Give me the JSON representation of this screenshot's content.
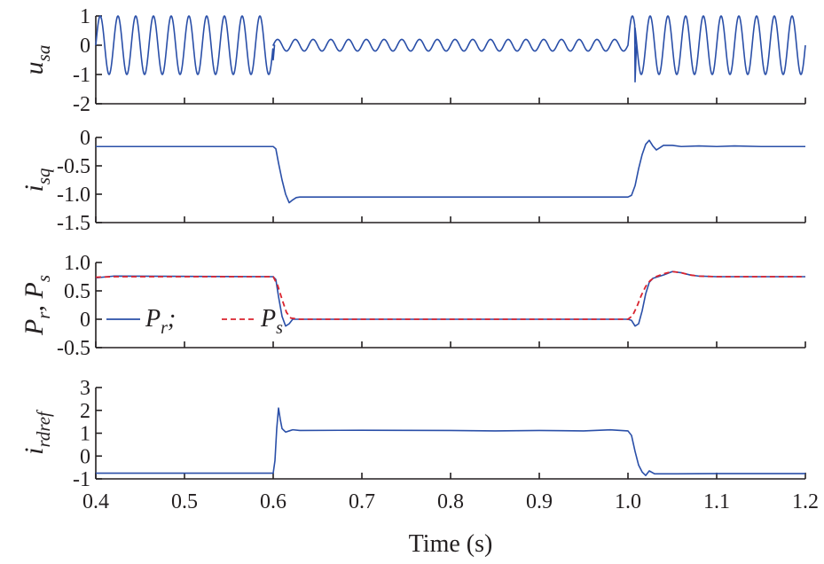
{
  "colors": {
    "series_solid": "#2a4fa8",
    "series_dashed": "#d9232e",
    "axis": "#231f20"
  },
  "chart_data": [
    {
      "type": "line",
      "ylabel": {
        "main": "u",
        "sub": "sa"
      },
      "xlim": [
        0.4,
        1.2
      ],
      "ylim": [
        -2,
        1
      ],
      "yticks": [
        "1",
        "0",
        "-1",
        "-2"
      ],
      "yticks_values": [
        1,
        0,
        -1,
        -2
      ],
      "grid": false,
      "series": [
        {
          "style": "solid",
          "segments": [
            {
              "x": [
                0.4,
                0.6
              ],
              "waveform": "sine",
              "amplitude": 1.0,
              "frequency_hz": 50,
              "offset": 0.0
            },
            {
              "x": [
                0.6,
                1.0
              ],
              "waveform": "sine",
              "amplitude": 0.2,
              "frequency_hz": 50,
              "offset": 0.0
            },
            {
              "x": [
                1.0,
                1.2
              ],
              "waveform": "sine",
              "amplitude": 1.0,
              "frequency_hz": 50,
              "offset": 0.0
            }
          ],
          "transients": [
            {
              "x": 0.6,
              "y": -0.5
            },
            {
              "x": 1.008,
              "y": -1.25
            }
          ]
        }
      ]
    },
    {
      "type": "line",
      "ylabel": {
        "main": "i",
        "sub": "sq"
      },
      "xlim": [
        0.4,
        1.2
      ],
      "ylim": [
        -1.5,
        0
      ],
      "yticks": [
        "0",
        "-0.5",
        "-1.0",
        "-1.5"
      ],
      "yticks_values": [
        0,
        -0.5,
        -1.0,
        -1.5
      ],
      "grid": false,
      "series": [
        {
          "style": "solid",
          "x": [
            0.4,
            0.6,
            0.603,
            0.606,
            0.61,
            0.614,
            0.618,
            0.622,
            0.626,
            0.63,
            0.7,
            0.8,
            0.9,
            1.0,
            1.004,
            1.008,
            1.012,
            1.016,
            1.02,
            1.024,
            1.028,
            1.032,
            1.036,
            1.04,
            1.05,
            1.06,
            1.08,
            1.1,
            1.12,
            1.15,
            1.2
          ],
          "y": [
            -0.16,
            -0.16,
            -0.2,
            -0.45,
            -0.75,
            -1.0,
            -1.15,
            -1.1,
            -1.06,
            -1.05,
            -1.05,
            -1.05,
            -1.05,
            -1.05,
            -1.02,
            -0.85,
            -0.55,
            -0.3,
            -0.12,
            -0.05,
            -0.15,
            -0.22,
            -0.18,
            -0.14,
            -0.14,
            -0.16,
            -0.15,
            -0.16,
            -0.15,
            -0.16,
            -0.16
          ]
        }
      ]
    },
    {
      "type": "line",
      "ylabel": {
        "main": "P",
        "sub": "r",
        "sep": ", ",
        "main2": "P",
        "sub2": "s"
      },
      "xlim": [
        0.4,
        1.2
      ],
      "ylim": [
        -0.5,
        1.0
      ],
      "yticks": [
        "1.0",
        "0.5",
        "0",
        "-0.5"
      ],
      "yticks_values": [
        1.0,
        0.5,
        0,
        -0.5
      ],
      "grid": false,
      "legend": {
        "placement": "middle-left",
        "entries": [
          {
            "main": "P",
            "sub": "r",
            "suffix": ";",
            "style": "solid"
          },
          {
            "main": "P",
            "sub": "s",
            "suffix": "",
            "style": "dashed"
          }
        ]
      },
      "series": [
        {
          "name": "Pr",
          "style": "solid",
          "x": [
            0.4,
            0.42,
            0.6,
            0.603,
            0.606,
            0.61,
            0.614,
            0.618,
            0.622,
            0.63,
            0.7,
            0.8,
            0.9,
            1.0,
            1.004,
            1.008,
            1.012,
            1.016,
            1.02,
            1.024,
            1.028,
            1.032,
            1.04,
            1.05,
            1.06,
            1.07,
            1.08,
            1.1,
            1.2
          ],
          "y": [
            0.73,
            0.76,
            0.75,
            0.7,
            0.4,
            0.05,
            -0.12,
            -0.08,
            0.0,
            0.0,
            0.0,
            0.0,
            0.0,
            0.0,
            -0.02,
            -0.12,
            -0.08,
            0.15,
            0.45,
            0.65,
            0.72,
            0.74,
            0.78,
            0.84,
            0.82,
            0.78,
            0.76,
            0.75,
            0.75
          ]
        },
        {
          "name": "Ps",
          "style": "dashed",
          "x": [
            0.4,
            0.42,
            0.6,
            0.605,
            0.61,
            0.615,
            0.62,
            0.63,
            0.7,
            0.8,
            0.9,
            1.0,
            1.005,
            1.01,
            1.015,
            1.02,
            1.025,
            1.03,
            1.04,
            1.05,
            1.06,
            1.07,
            1.08,
            1.1,
            1.2
          ],
          "y": [
            0.74,
            0.75,
            0.75,
            0.6,
            0.35,
            0.12,
            0.02,
            0.0,
            0.0,
            0.0,
            0.0,
            0.0,
            0.06,
            0.22,
            0.42,
            0.58,
            0.68,
            0.74,
            0.8,
            0.84,
            0.82,
            0.78,
            0.76,
            0.75,
            0.75
          ]
        }
      ]
    },
    {
      "type": "line",
      "ylabel": {
        "main": "i",
        "sub": "rdref"
      },
      "xlim": [
        0.4,
        1.2
      ],
      "ylim": [
        -1,
        3
      ],
      "yticks": [
        "3",
        "2",
        "1",
        "0",
        "-1"
      ],
      "yticks_values": [
        3,
        2,
        1,
        0,
        -1
      ],
      "xticks": [
        "0.4",
        "0.5",
        "0.6",
        "0.7",
        "0.8",
        "0.9",
        "1.0",
        "1.1",
        "1.2"
      ],
      "xticks_values": [
        0.4,
        0.5,
        0.6,
        0.7,
        0.8,
        0.9,
        1.0,
        1.1,
        1.2
      ],
      "xlabel": "Time (s)",
      "grid": false,
      "series": [
        {
          "style": "solid",
          "x": [
            0.4,
            0.6,
            0.602,
            0.604,
            0.606,
            0.608,
            0.61,
            0.614,
            0.618,
            0.622,
            0.63,
            0.7,
            0.8,
            0.85,
            0.9,
            0.95,
            0.98,
            1.0,
            1.004,
            1.008,
            1.012,
            1.016,
            1.02,
            1.024,
            1.03,
            1.05,
            1.1,
            1.2
          ],
          "y": [
            -0.75,
            -0.75,
            -0.2,
            1.2,
            2.1,
            1.6,
            1.2,
            1.05,
            1.1,
            1.15,
            1.12,
            1.13,
            1.12,
            1.1,
            1.12,
            1.1,
            1.15,
            1.1,
            0.9,
            0.2,
            -0.4,
            -0.7,
            -0.85,
            -0.65,
            -0.78,
            -0.78,
            -0.77,
            -0.77
          ]
        }
      ]
    }
  ]
}
